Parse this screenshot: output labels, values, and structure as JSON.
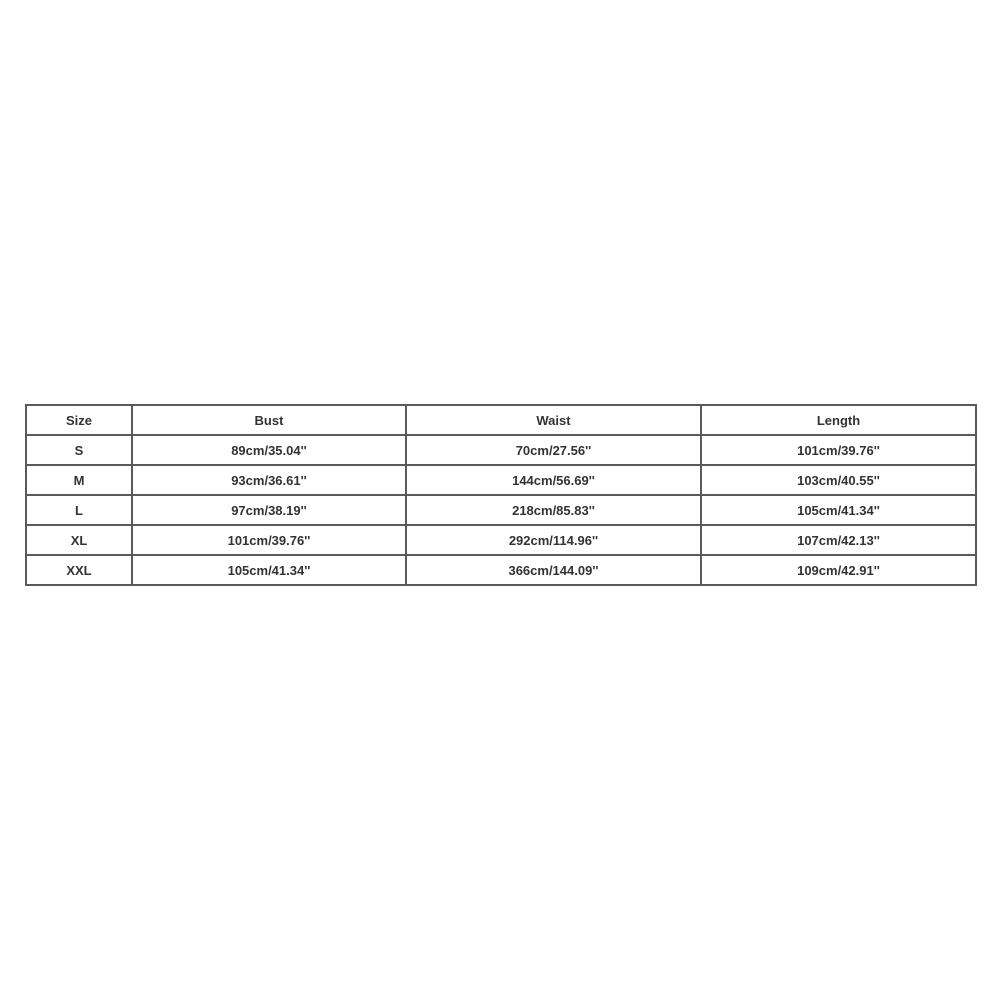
{
  "size_chart": {
    "headers": [
      "Size",
      "Bust",
      "Waist",
      "Length"
    ],
    "rows": [
      [
        "S",
        "89cm/35.04''",
        "70cm/27.56''",
        "101cm/39.76''"
      ],
      [
        "M",
        "93cm/36.61''",
        "144cm/56.69''",
        "103cm/40.55''"
      ],
      [
        "L",
        "97cm/38.19''",
        "218cm/85.83''",
        "105cm/41.34''"
      ],
      [
        "XL",
        "101cm/39.76''",
        "292cm/114.96''",
        "107cm/42.13''"
      ],
      [
        "XXL",
        "105cm/41.34''",
        "366cm/144.09''",
        "109cm/42.91''"
      ]
    ]
  }
}
